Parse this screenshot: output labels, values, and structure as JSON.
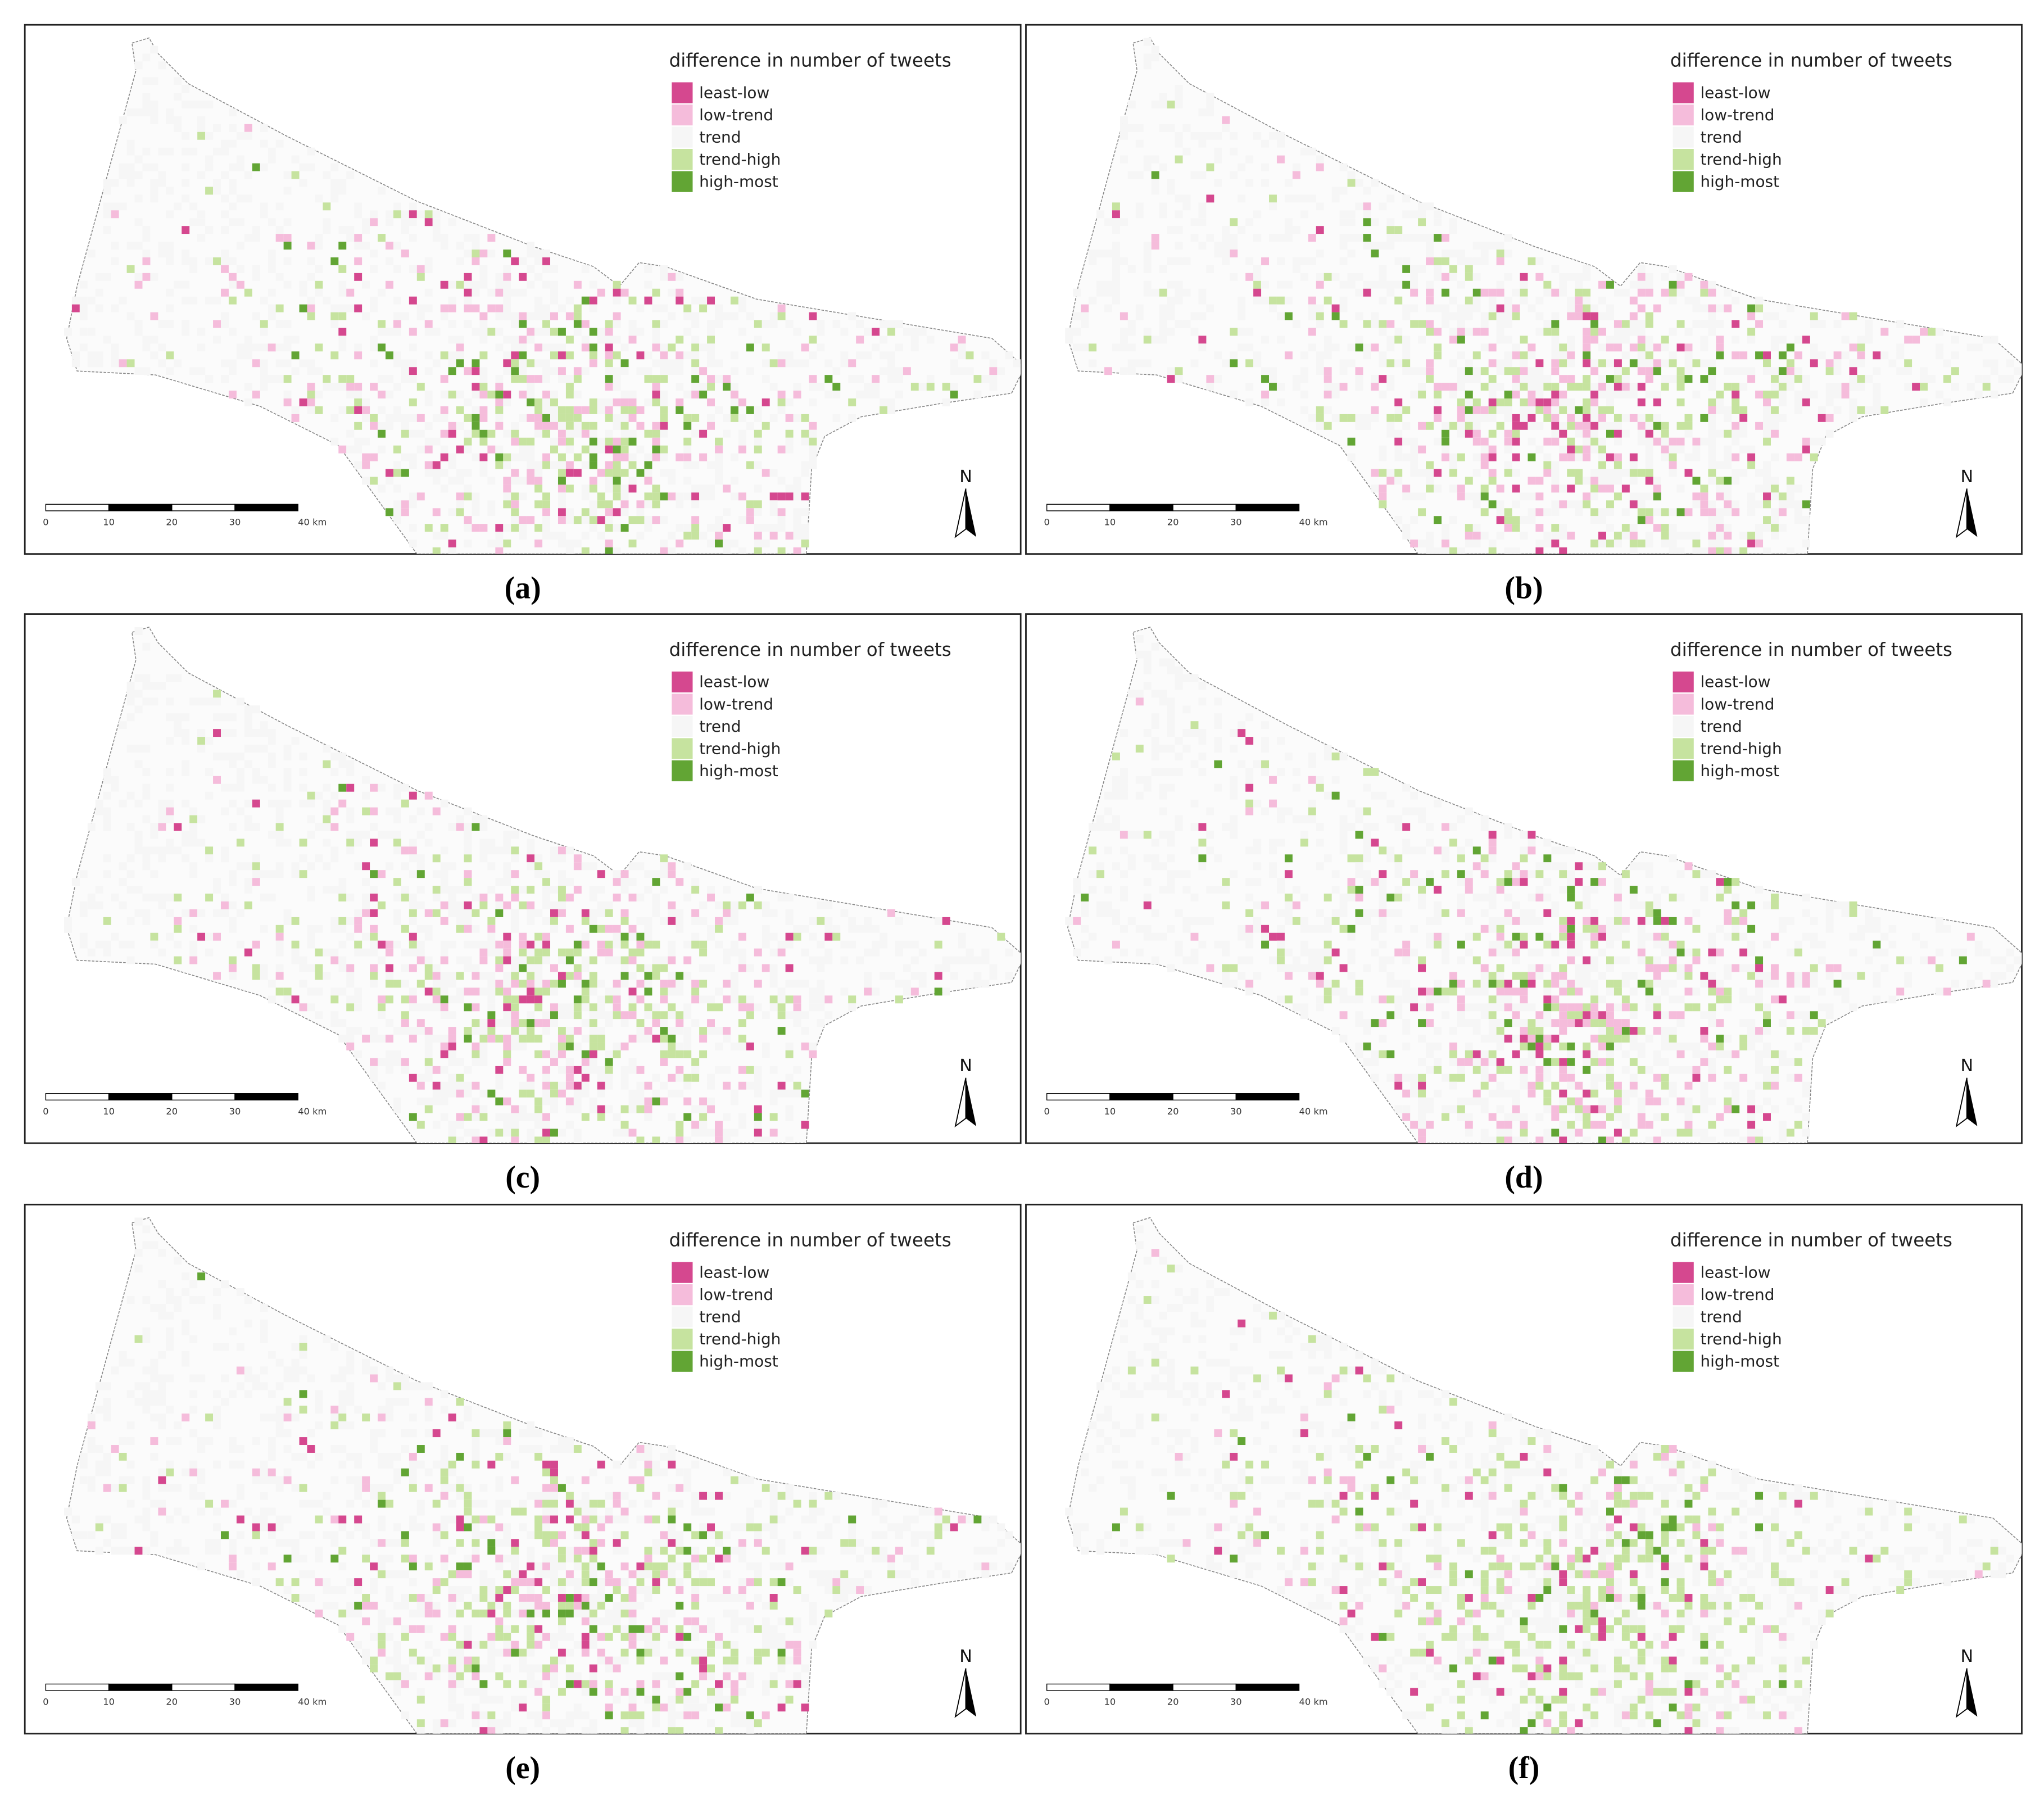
{
  "legend": {
    "title": "difference in number of tweets",
    "items": [
      {
        "label": "least-low",
        "color": "#d5488f"
      },
      {
        "label": "low-trend",
        "color": "#f5bcdb"
      },
      {
        "label": "trend",
        "color": "#f6f6f6"
      },
      {
        "label": "trend-high",
        "color": "#c6e39f"
      },
      {
        "label": "high-most",
        "color": "#62a534"
      }
    ]
  },
  "scale_bar": {
    "ticks": [
      "0",
      "10",
      "20",
      "30",
      "40 km"
    ]
  },
  "north": "N",
  "panels": [
    {
      "label": "(a)"
    },
    {
      "label": "(b)"
    },
    {
      "label": "(c)"
    },
    {
      "label": "(d)"
    },
    {
      "label": "(e)"
    },
    {
      "label": "(f)"
    }
  ]
}
